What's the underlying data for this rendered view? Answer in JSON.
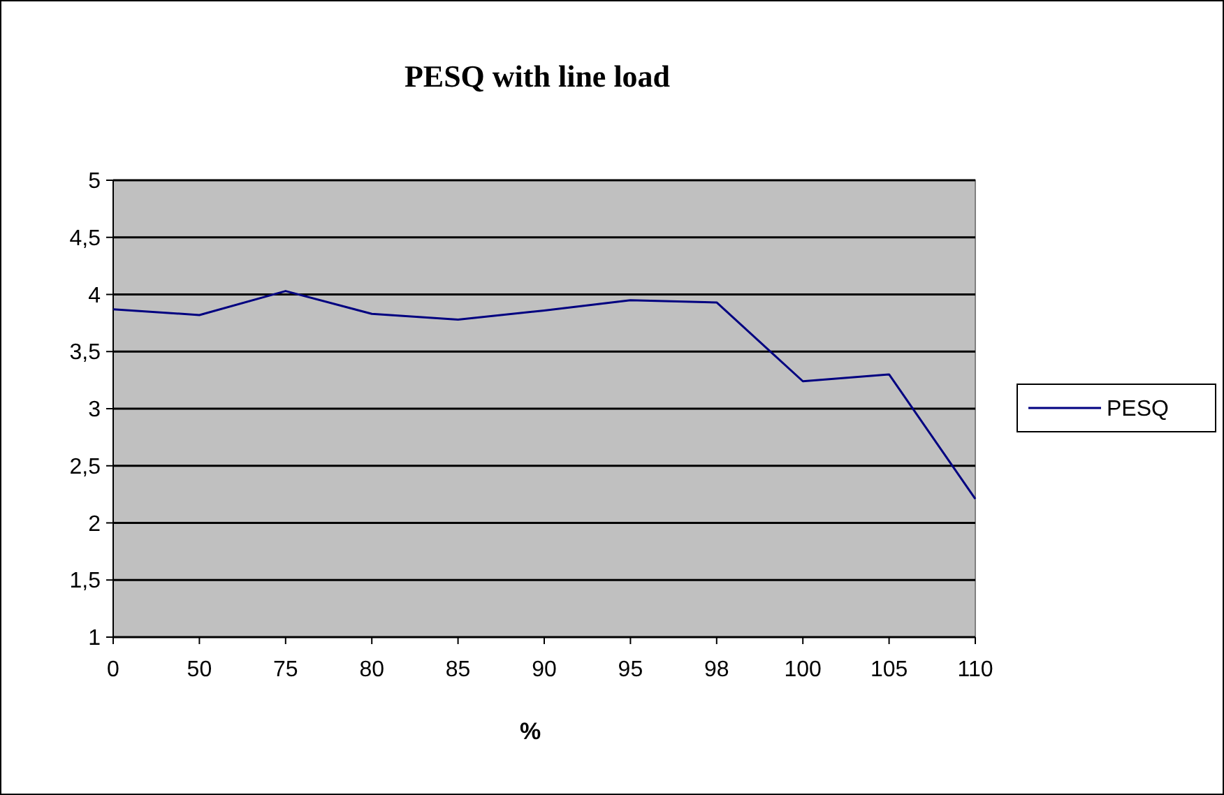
{
  "chart_data": {
    "type": "line",
    "title": "PESQ with line load",
    "xlabel": "%",
    "categories": [
      "0",
      "50",
      "75",
      "80",
      "85",
      "90",
      "95",
      "98",
      "100",
      "105",
      "110"
    ],
    "series": [
      {
        "name": "PESQ",
        "color": "#000080",
        "values": [
          3.87,
          3.82,
          4.03,
          3.83,
          3.78,
          3.86,
          3.95,
          3.93,
          3.24,
          3.3,
          2.21
        ]
      }
    ],
    "ylim": [
      1,
      5
    ],
    "yticks": [
      1,
      {
        "value": 1.5,
        "label": "1,5"
      },
      2,
      {
        "value": 2.5,
        "label": "2,5"
      },
      3,
      {
        "value": 3.5,
        "label": "3,5"
      },
      4,
      {
        "value": 4.5,
        "label": "4,5"
      },
      5
    ],
    "grid": "y",
    "legend": "right",
    "marker": "none",
    "line_style": "solid"
  }
}
